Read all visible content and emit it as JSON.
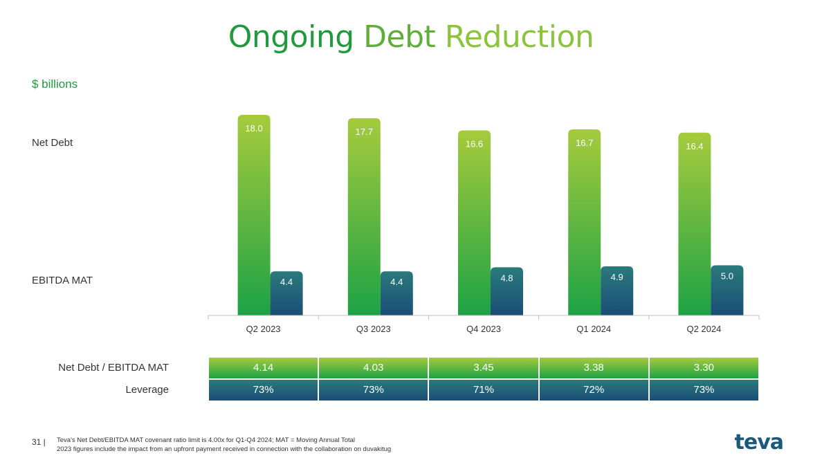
{
  "title": {
    "w1": "Ongoing",
    "w2": "Debt",
    "w3": "Reduction"
  },
  "units": "$ billions",
  "labels": {
    "net_debt": "Net Debt",
    "ebitda": "EBITDA MAT"
  },
  "chart_data": {
    "type": "bar",
    "categories": [
      "Q2 2023",
      "Q3 2023",
      "Q4 2023",
      "Q1 2024",
      "Q2 2024"
    ],
    "series": [
      {
        "name": "Net Debt",
        "values": [
          18.0,
          17.7,
          16.6,
          16.7,
          16.4
        ],
        "labels": [
          "18.0",
          "17.7",
          "16.6",
          "16.7",
          "16.4"
        ]
      },
      {
        "name": "EBITDA MAT",
        "values": [
          4.4,
          4.4,
          4.8,
          4.9,
          5.0
        ],
        "labels": [
          "4.4",
          "4.4",
          "4.8",
          "4.9",
          "5.0"
        ]
      }
    ],
    "colors": {
      "net_debt_top": "#a6cb3c",
      "net_debt_bottom": "#1da245",
      "ebitda_top": "#2a7a7c",
      "ebitda_bottom": "#1b4d76"
    },
    "ylim": [
      0,
      20
    ]
  },
  "table": {
    "row1_label": "Net Debt / EBITDA MAT",
    "row1": [
      "4.14",
      "4.03",
      "3.45",
      "3.38",
      "3.30"
    ],
    "row2_label": "Leverage",
    "row2": [
      "73%",
      "73%",
      "71%",
      "72%",
      "73%"
    ]
  },
  "footer": {
    "page": "31 |",
    "line1": "Teva's Net Debt/EBITDA MAT covenant ratio limit is 4.00x for Q1-Q4 2024; MAT = Moving Annual Total",
    "line2": "2023 figures include the impact from an upfront payment received in connection with the collaboration on duvakitug"
  },
  "logo": "teva"
}
